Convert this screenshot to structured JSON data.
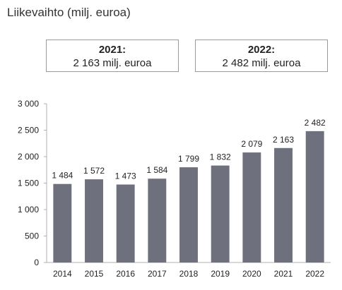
{
  "header": {
    "title": "Liikevaihto (milj. euroa)"
  },
  "summary_boxes": [
    {
      "year": "2021:",
      "value": "2 163 milj. euroa"
    },
    {
      "year": "2022:",
      "value": "2 482 milj. euroa"
    }
  ],
  "chart_data": {
    "type": "bar",
    "title": "",
    "xlabel": "",
    "ylabel": "",
    "categories": [
      "2014",
      "2015",
      "2016",
      "2017",
      "2018",
      "2019",
      "2020",
      "2021",
      "2022"
    ],
    "values": [
      1484,
      1572,
      1473,
      1584,
      1799,
      1832,
      2079,
      2163,
      2482
    ],
    "value_labels": [
      "1 484",
      "1 572",
      "1 473",
      "1 584",
      "1 799",
      "1 832",
      "2 079",
      "2 163",
      "2 482"
    ],
    "yticks": [
      0,
      500,
      1000,
      1500,
      2000,
      2500,
      3000
    ],
    "ytick_labels": [
      "0",
      "500",
      "1 000",
      "1 500",
      "2 000",
      "2 500",
      "3 000"
    ],
    "ylim": [
      0,
      3000
    ],
    "grid": false,
    "legend": "none",
    "bar_color": "#6e717d",
    "axis_color": "#b0b0b0"
  }
}
